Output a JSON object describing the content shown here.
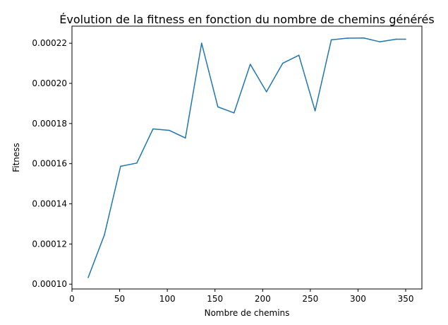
{
  "chart_data": {
    "type": "line",
    "title": "Évolution de la fitness en fonction du nombre de chemins générés",
    "xlabel": "Nombre de chemins",
    "ylabel": "Fitness",
    "xlim": [
      0,
      367
    ],
    "ylim": [
      9.76e-05,
      0.0002285
    ],
    "xticks": [
      0,
      50,
      100,
      150,
      200,
      250,
      300,
      350
    ],
    "xtick_labels": [
      "0",
      "50",
      "100",
      "150",
      "200",
      "250",
      "300",
      "350"
    ],
    "yticks": [
      0.0001,
      0.00012,
      0.00014,
      0.00016,
      0.00018,
      0.0002,
      0.00022
    ],
    "ytick_labels": [
      "0.00010",
      "0.00012",
      "0.00014",
      "0.00016",
      "0.00018",
      "0.00020",
      "0.00022"
    ],
    "grid": false,
    "series": [
      {
        "color": "#1f77b4",
        "x": [
          17,
          34,
          51,
          68,
          85,
          102,
          119,
          136,
          153,
          170,
          187,
          204,
          221,
          238,
          255,
          272,
          289,
          306,
          323,
          340,
          350
        ],
        "y": [
          0.0001033,
          0.0001245,
          0.0001587,
          0.0001603,
          0.0001773,
          0.0001766,
          0.0001728,
          0.00022,
          0.0001883,
          0.0001853,
          0.0002095,
          0.0001958,
          0.00021,
          0.000214,
          0.0001863,
          0.0002217,
          0.0002225,
          0.0002226,
          0.0002207,
          0.000222,
          0.000222
        ]
      }
    ]
  }
}
